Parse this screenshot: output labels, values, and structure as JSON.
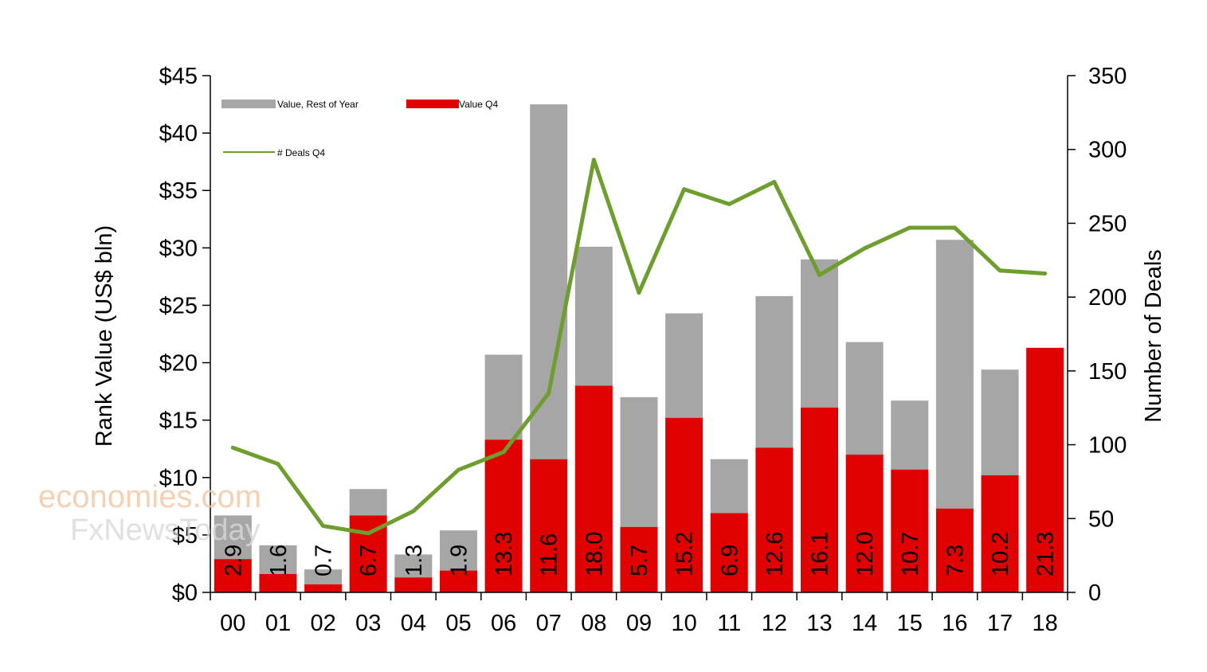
{
  "chart_data": {
    "type": "bar",
    "stacked": true,
    "categories": [
      "00",
      "01",
      "02",
      "03",
      "04",
      "05",
      "06",
      "07",
      "08",
      "09",
      "10",
      "11",
      "12",
      "13",
      "14",
      "15",
      "16",
      "17",
      "18"
    ],
    "series": [
      {
        "name": "Value, Rest of Year",
        "color": "#a6a6a6",
        "axis": "left",
        "values": [
          3.8,
          2.5,
          1.3,
          2.3,
          2.0,
          3.5,
          7.4,
          30.9,
          12.1,
          11.3,
          9.1,
          4.7,
          13.2,
          12.9,
          9.8,
          6.0,
          23.4,
          9.2,
          0.0
        ]
      },
      {
        "name": "Value Q4",
        "color": "#e00000",
        "axis": "left",
        "values": [
          2.9,
          1.6,
          0.7,
          6.7,
          1.3,
          1.9,
          13.3,
          11.6,
          18.0,
          5.7,
          15.2,
          6.9,
          12.6,
          16.1,
          12.0,
          10.7,
          7.3,
          10.2,
          21.3
        ],
        "labels": [
          "2.9",
          "1.6",
          "0.7",
          "6.7",
          "1.3",
          "1.9",
          "13.3",
          "11.6",
          "18.0",
          "5.7",
          "15.2",
          "6.9",
          "12.6",
          "16.1",
          "12.0",
          "10.7",
          "7.3",
          "10.2",
          "21.3"
        ]
      },
      {
        "name": "# Deals Q4",
        "type": "line",
        "color": "#6e9e2e",
        "axis": "right",
        "values": [
          98,
          87,
          45,
          40,
          55,
          83,
          95,
          135,
          293,
          203,
          273,
          263,
          278,
          215,
          233,
          247,
          247,
          218,
          216
        ]
      }
    ],
    "left_axis": {
      "label": "Rank Value (US$ bln)",
      "range": [
        0,
        45
      ],
      "ticks": [
        0,
        5,
        10,
        15,
        20,
        25,
        30,
        35,
        40,
        45
      ],
      "tick_labels": [
        "$0",
        "$5",
        "$10",
        "$15",
        "$20",
        "$25",
        "$30",
        "$35",
        "$40",
        "$45"
      ]
    },
    "right_axis": {
      "label": "Number of Deals",
      "range": [
        0,
        350
      ],
      "ticks": [
        0,
        50,
        100,
        150,
        200,
        250,
        300,
        350
      ],
      "tick_labels": [
        "0",
        "50",
        "100",
        "150",
        "200",
        "250",
        "300",
        "350"
      ]
    },
    "grid": false,
    "legend_position": "top-left"
  },
  "watermark": {
    "line1": "economies.com",
    "line2": "FxNewsToday"
  }
}
